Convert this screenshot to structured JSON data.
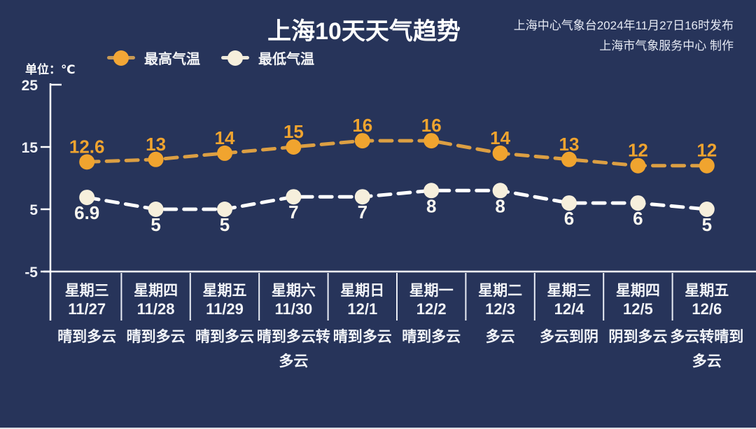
{
  "title": "上海10天天气趋势",
  "source": {
    "line1": "上海中心气象台2024年11月27日16时发布",
    "line2": "上海市气象服务中心 制作"
  },
  "unit_label": "单位：℃",
  "legend": {
    "high_label": "最高气温",
    "low_label": "最低气温"
  },
  "colors": {
    "background": "#27345A",
    "axis": "#FFFFFF",
    "high_marker": "#F0A42F",
    "high_line": "#DC9F43",
    "low_marker": "#F6EFDC",
    "low_line": "#FFFFFF"
  },
  "chart_data": {
    "type": "line",
    "title": "上海10天天气趋势",
    "unit": "℃",
    "ylim": [
      -5,
      25
    ],
    "y_ticks": [
      25,
      15,
      5,
      -5
    ],
    "grid": false,
    "legend_position": "top",
    "categories": [
      "星期三",
      "星期四",
      "星期五",
      "星期六",
      "星期日",
      "星期一",
      "星期二",
      "星期三",
      "星期四",
      "星期五"
    ],
    "dates": [
      "11/27",
      "11/28",
      "11/29",
      "11/30",
      "12/1",
      "12/2",
      "12/3",
      "12/4",
      "12/5",
      "12/6"
    ],
    "weather": [
      "晴到多云",
      "晴到多云",
      "晴到多云",
      "晴到多云转\n多云",
      "晴到多云",
      "晴到多云",
      "多云",
      "多云到阴",
      "阴到多云",
      "多云转晴到\n多云"
    ],
    "series": [
      {
        "name": "最高气温",
        "color": "#F0A42F",
        "line_color": "#DC9F43",
        "label_position": "above",
        "values": [
          12.6,
          13,
          14,
          15,
          16,
          16,
          14,
          13,
          12,
          12
        ]
      },
      {
        "name": "最低气温",
        "color": "#F6EFDC",
        "line_color": "#FFFFFF",
        "label_color": "#FBF8F0",
        "label_position": "below",
        "values": [
          6.9,
          5,
          5,
          7,
          7,
          8,
          8,
          6,
          6,
          5
        ]
      }
    ]
  }
}
